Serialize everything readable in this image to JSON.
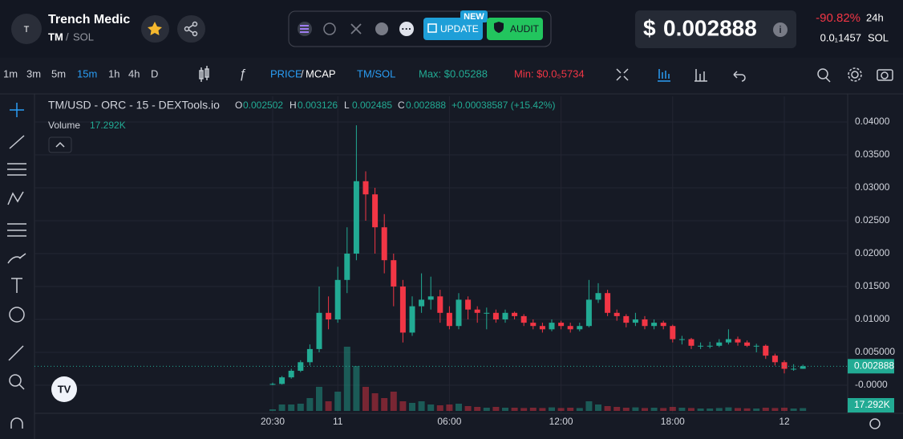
{
  "header": {
    "avatar": "T",
    "name": "Trench Medic",
    "ticker": "TM",
    "separator": "/",
    "quote": "SOL",
    "new_badge": "NEW",
    "update": "UPDATE",
    "audit": "AUDIT",
    "currency": "$",
    "change": "-90.82%",
    "period": "24h",
    "price_sol": "0.0₁1457",
    "sol": "SOL"
  },
  "toolbar": {
    "intervals": [
      "1m",
      "3m",
      "5m",
      "15m",
      "1h",
      "4h",
      "D"
    ],
    "active": 3,
    "price": "PRICE",
    "slash": "/",
    "mcap": "MCAP",
    "pair": "TM/SOL",
    "max": "Max: $0.05288",
    "min": "Min: $0.0₅5734"
  },
  "chart_data": {
    "type": "candlestick",
    "title": "TM/USD - ORC - 15 - DEXTools.io",
    "o": "O",
    "h": "H",
    "l": "L",
    "c": "C",
    "change": "+0.00038587 (+15.42%)",
    "volume_title": "Volume",
    "volume_label": "17.292K",
    "up_color": "#22ab94",
    "down_color": "#f23645",
    "grid": true,
    "ylim": [
      -0.0039,
      0.0439
    ],
    "yticks": [
      {
        "value": 0.04,
        "label": "0.04000"
      },
      {
        "value": 0.035,
        "label": "0.03500"
      },
      {
        "value": 0.03,
        "label": "0.03000"
      },
      {
        "value": 0.025,
        "label": "0.02500"
      },
      {
        "value": 0.02,
        "label": "0.02000"
      },
      {
        "value": 0.015,
        "label": "0.01500"
      },
      {
        "value": 0.01,
        "label": "0.01000"
      },
      {
        "value": 0.005,
        "label": "0.005000"
      },
      {
        "value": 0,
        "label": "-0.0000"
      }
    ],
    "xticks": [
      {
        "value": 0,
        "label": "20:30"
      },
      {
        "value": 7,
        "label": "11"
      },
      {
        "value": 19,
        "label": "06:00"
      },
      {
        "value": 31,
        "label": "12:00"
      },
      {
        "value": 43,
        "label": "18:00"
      },
      {
        "value": 55,
        "label": "12"
      }
    ],
    "vlim": [
      0,
      500
    ],
    "candles": [
      [
        0.0001,
        0.0004,
        0.0,
        0.0002
      ],
      [
        0.0002,
        0.0014,
        0.0001,
        0.0012
      ],
      [
        0.0012,
        0.0025,
        0.001,
        0.0022
      ],
      [
        0.0022,
        0.0038,
        0.002,
        0.0035
      ],
      [
        0.0035,
        0.0062,
        0.003,
        0.0055
      ],
      [
        0.0055,
        0.015,
        0.005,
        0.011
      ],
      [
        0.011,
        0.0135,
        0.0085,
        0.01
      ],
      [
        0.01,
        0.018,
        0.0095,
        0.016
      ],
      [
        0.016,
        0.024,
        0.014,
        0.02
      ],
      [
        0.02,
        0.0395,
        0.019,
        0.031
      ],
      [
        0.031,
        0.0325,
        0.025,
        0.029
      ],
      [
        0.029,
        0.03,
        0.02,
        0.024
      ],
      [
        0.024,
        0.026,
        0.017,
        0.019
      ],
      [
        0.019,
        0.02,
        0.012,
        0.015
      ],
      [
        0.015,
        0.016,
        0.0065,
        0.008
      ],
      [
        0.008,
        0.0135,
        0.0075,
        0.012
      ],
      [
        0.012,
        0.017,
        0.011,
        0.013
      ],
      [
        0.013,
        0.0165,
        0.0115,
        0.0135
      ],
      [
        0.0135,
        0.0145,
        0.0095,
        0.011
      ],
      [
        0.011,
        0.012,
        0.0085,
        0.009
      ],
      [
        0.009,
        0.014,
        0.0085,
        0.013
      ],
      [
        0.013,
        0.0135,
        0.01,
        0.0115
      ],
      [
        0.0115,
        0.012,
        0.0095,
        0.011
      ],
      [
        0.011,
        0.0118,
        0.0085,
        0.011
      ],
      [
        0.011,
        0.0115,
        0.0095,
        0.01
      ],
      [
        0.01,
        0.0115,
        0.0095,
        0.011
      ],
      [
        0.011,
        0.0112,
        0.01,
        0.0105
      ],
      [
        0.0105,
        0.0108,
        0.009,
        0.0095
      ],
      [
        0.0095,
        0.01,
        0.0085,
        0.009
      ],
      [
        0.009,
        0.0095,
        0.008,
        0.0085
      ],
      [
        0.0085,
        0.01,
        0.0082,
        0.0095
      ],
      [
        0.0095,
        0.0098,
        0.0085,
        0.009
      ],
      [
        0.009,
        0.0095,
        0.008,
        0.0085
      ],
      [
        0.0085,
        0.0095,
        0.0082,
        0.009
      ],
      [
        0.009,
        0.016,
        0.0088,
        0.013
      ],
      [
        0.013,
        0.0155,
        0.0125,
        0.014
      ],
      [
        0.014,
        0.0145,
        0.0105,
        0.011
      ],
      [
        0.011,
        0.0115,
        0.0098,
        0.0105
      ],
      [
        0.0105,
        0.0108,
        0.0088,
        0.0095
      ],
      [
        0.0095,
        0.011,
        0.009,
        0.01
      ],
      [
        0.01,
        0.0105,
        0.0085,
        0.009
      ],
      [
        0.009,
        0.01,
        0.0085,
        0.0095
      ],
      [
        0.0095,
        0.0098,
        0.0085,
        0.009
      ],
      [
        0.009,
        0.0092,
        0.0065,
        0.007
      ],
      [
        0.007,
        0.0075,
        0.0062,
        0.007
      ],
      [
        0.007,
        0.0072,
        0.0055,
        0.006
      ],
      [
        0.006,
        0.0065,
        0.0055,
        0.006
      ],
      [
        0.006,
        0.0066,
        0.0056,
        0.006
      ],
      [
        0.006,
        0.007,
        0.0058,
        0.0065
      ],
      [
        0.0065,
        0.0085,
        0.0062,
        0.007
      ],
      [
        0.007,
        0.0074,
        0.006,
        0.0065
      ],
      [
        0.0065,
        0.0068,
        0.0058,
        0.006
      ],
      [
        0.006,
        0.0063,
        0.005,
        0.006
      ],
      [
        0.006,
        0.0062,
        0.004,
        0.0045
      ],
      [
        0.0045,
        0.0048,
        0.003,
        0.0035
      ],
      [
        0.0035,
        0.0038,
        0.0018,
        0.0025
      ],
      [
        0.0025,
        0.0032,
        0.0022,
        0.002502
      ],
      [
        0.002502,
        0.003126,
        0.002485,
        0.002888
      ]
    ],
    "volume": [
      10,
      40,
      40,
      45,
      80,
      150,
      60,
      120,
      400,
      280,
      150,
      110,
      80,
      120,
      60,
      50,
      60,
      40,
      35,
      40,
      45,
      30,
      25,
      20,
      25,
      20,
      20,
      18,
      20,
      18,
      22,
      18,
      20,
      18,
      60,
      40,
      30,
      25,
      20,
      22,
      18,
      20,
      18,
      25,
      20,
      18,
      15,
      15,
      18,
      22,
      18,
      16,
      15,
      20,
      18,
      20,
      15,
      17.292
    ]
  }
}
